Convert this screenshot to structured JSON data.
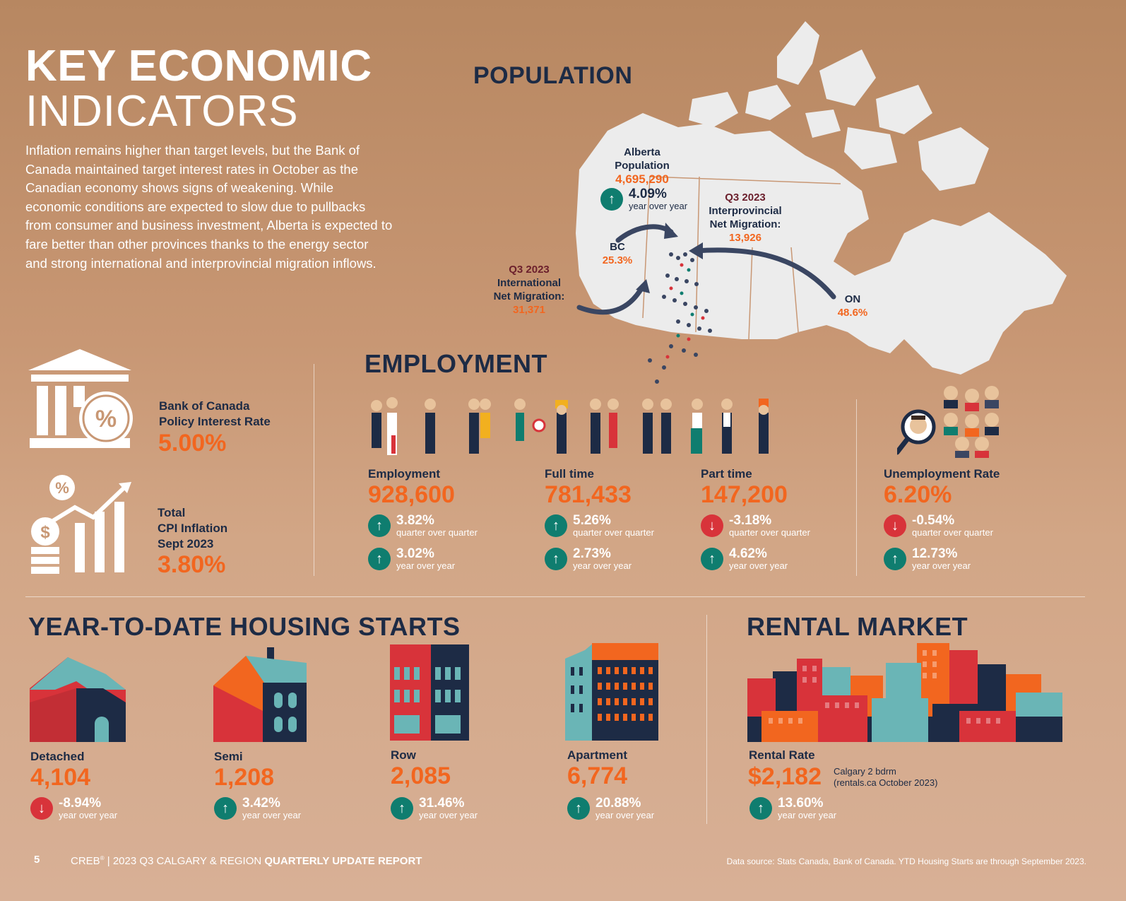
{
  "header": {
    "title_line1": "KEY ECONOMIC",
    "title_line2": "INDICATORS",
    "intro": "Inflation remains higher than target levels, but the Bank of Canada maintained target interest rates in October as the Canadian economy shows signs of weakening. While economic conditions are expected to slow due to pullbacks from consumer and business investment, Alberta is expected to fare better than other provinces thanks to the energy sector and strong international and interprovincial migration inflows."
  },
  "population": {
    "heading": "POPULATION",
    "alberta": {
      "label1": "Alberta",
      "label2": "Population",
      "value": "4,695,290",
      "change": "4.09%",
      "change_sub": "year over year"
    },
    "interprovincial": {
      "period": "Q3 2023",
      "label1": "Interprovincial",
      "label2": "Net Migration:",
      "value": "13,926"
    },
    "international": {
      "period": "Q3 2023",
      "label1": "International",
      "label2": "Net Migration:",
      "value": "31,371"
    },
    "bc": {
      "label": "BC",
      "value": "25.3%"
    },
    "on": {
      "label": "ON",
      "value": "48.6%"
    }
  },
  "rates": {
    "policy": {
      "label1": "Bank of Canada",
      "label2": "Policy Interest Rate",
      "value": "5.00%"
    },
    "cpi": {
      "label1": "Total",
      "label2": "CPI Inflation",
      "label3": "Sept 2023",
      "value": "3.80%"
    }
  },
  "employment": {
    "heading": "EMPLOYMENT",
    "items": [
      {
        "label": "Employment",
        "value": "928,600",
        "qoq": "3.82%",
        "qoq_dir": "up",
        "yoy": "3.02%",
        "yoy_dir": "up"
      },
      {
        "label": "Full time",
        "value": "781,433",
        "qoq": "5.26%",
        "qoq_dir": "up",
        "yoy": "2.73%",
        "yoy_dir": "up"
      },
      {
        "label": "Part time",
        "value": "147,200",
        "qoq": "-3.18%",
        "qoq_dir": "down",
        "yoy": "4.62%",
        "yoy_dir": "up"
      },
      {
        "label": "Unemployment Rate",
        "value": "6.20%",
        "qoq": "-0.54%",
        "qoq_dir": "down",
        "yoy": "12.73%",
        "yoy_dir": "up"
      }
    ],
    "qoq_sub": "quarter over quarter",
    "yoy_sub": "year over year"
  },
  "housing": {
    "heading": "YEAR-TO-DATE HOUSING STARTS",
    "items": [
      {
        "label": "Detached",
        "value": "4,104",
        "change": "-8.94%",
        "dir": "down"
      },
      {
        "label": "Semi",
        "value": "1,208",
        "change": "3.42%",
        "dir": "up"
      },
      {
        "label": "Row",
        "value": "2,085",
        "change": "31.46%",
        "dir": "up"
      },
      {
        "label": "Apartment",
        "value": "6,774",
        "change": "20.88%",
        "dir": "up"
      }
    ],
    "change_sub": "year over year"
  },
  "rental": {
    "heading": "RENTAL MARKET",
    "label": "Rental Rate",
    "value": "$2,182",
    "note1": "Calgary 2 bdrm",
    "note2": "(rentals.ca October 2023)",
    "change": "13.60%",
    "change_sub": "year over year"
  },
  "footer": {
    "page": "5",
    "brand": "CREB",
    "reg": "®",
    "report_prefix": " | 2023 Q3 CALGARY & REGION ",
    "report_bold": "QUARTERLY UPDATE REPORT",
    "source": "Data source: Stats Canada, Bank of Canada. YTD Housing Starts are through September 2023."
  },
  "colors": {
    "navy": "#1d2b45",
    "orange": "#f2661f",
    "up": "#0f7d6f",
    "down": "#d8333a",
    "map": "#ececec"
  },
  "icons": [
    "bank-building-icon",
    "cpi-chart-icon",
    "workers-icon",
    "job-search-icon",
    "house-icons",
    "city-skyline-icon",
    "arrow-up-icon",
    "arrow-down-icon"
  ]
}
